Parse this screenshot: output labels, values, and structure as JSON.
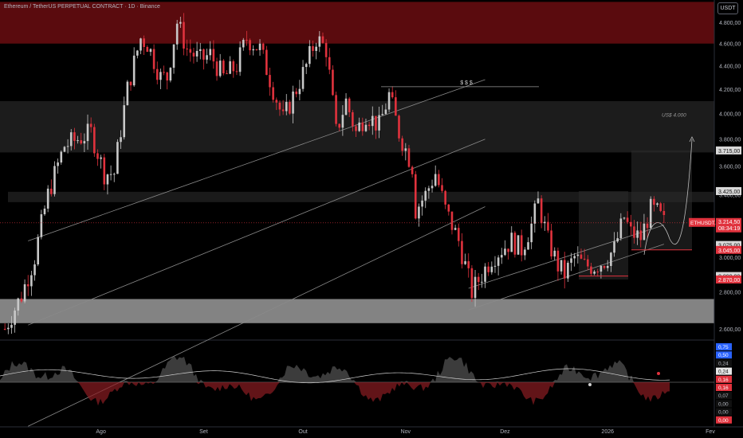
{
  "header": {
    "title": "Ethereum / TetherUS PERPETUAL CONTRACT · 1D · Binance",
    "currency_label": "USDT"
  },
  "colors": {
    "up": "#c8c8c8",
    "down": "#e0323d",
    "background": "#000000",
    "resistance_zone": "#5a0b0e",
    "support_zone": "#9a9a9a",
    "price_tag": "#e0323d",
    "neutral_tag": "#d8d8d8",
    "blue_tag": "#2962ff"
  },
  "chart_data": [
    {
      "type": "candlestick",
      "title": "Ethereum / TetherUS PERPETUAL CONTRACT · 1D · Binance",
      "symbol": "ETHUSDT.P",
      "y_axis": {
        "scale": "log",
        "ticks": [
          2600,
          2800,
          3000,
          3200,
          3400,
          3600,
          3800,
          4000,
          4200,
          4400,
          4600,
          4800
        ],
        "tick_labels": [
          "2.600,00",
          "2.800,00",
          "3.000,00",
          "3.200,00",
          "3.400,00",
          "3.600,00",
          "3.800,00",
          "4.000,00",
          "4.200,00",
          "4.400,00",
          "4.600,00",
          "4.800,00"
        ]
      },
      "x_axis": {
        "labels": [
          {
            "date": "2025-08-01",
            "text": "Ago"
          },
          {
            "date": "2025-09-01",
            "text": "Set"
          },
          {
            "date": "2025-10-01",
            "text": "Out"
          },
          {
            "date": "2025-11-01",
            "text": "Nov"
          },
          {
            "date": "2025-12-01",
            "text": "Dez"
          },
          {
            "date": "2026-01-01",
            "text": "2026"
          },
          {
            "date": "2026-02-01",
            "text": "Fev"
          }
        ]
      },
      "price_path": [
        [
          "2025-07-03",
          2600
        ],
        [
          "2025-07-08",
          2780
        ],
        [
          "2025-07-12",
          3000
        ],
        [
          "2025-07-16",
          3400
        ],
        [
          "2025-07-21",
          3750
        ],
        [
          "2025-07-25",
          3800
        ],
        [
          "2025-07-29",
          3850
        ],
        [
          "2025-08-02",
          3550
        ],
        [
          "2025-08-05",
          3550
        ],
        [
          "2025-08-09",
          4200
        ],
        [
          "2025-08-13",
          4650
        ],
        [
          "2025-08-15",
          4600
        ],
        [
          "2025-08-19",
          4300
        ],
        [
          "2025-08-21",
          4300
        ],
        [
          "2025-08-24",
          4800
        ],
        [
          "2025-08-27",
          4550
        ],
        [
          "2025-08-31",
          4450
        ],
        [
          "2025-09-03",
          4500
        ],
        [
          "2025-09-07",
          4300
        ],
        [
          "2025-09-11",
          4400
        ],
        [
          "2025-09-14",
          4650
        ],
        [
          "2025-09-18",
          4550
        ],
        [
          "2025-09-22",
          4200
        ],
        [
          "2025-09-25",
          3950
        ],
        [
          "2025-09-29",
          4200
        ],
        [
          "2025-10-02",
          4400
        ],
        [
          "2025-10-05",
          4650
        ],
        [
          "2025-10-08",
          4550
        ],
        [
          "2025-10-11",
          3850
        ],
        [
          "2025-10-14",
          4100
        ],
        [
          "2025-10-17",
          3850
        ],
        [
          "2025-10-20",
          4000
        ],
        [
          "2025-10-24",
          3900
        ],
        [
          "2025-10-27",
          4150
        ],
        [
          "2025-10-30",
          3850
        ],
        [
          "2025-11-03",
          3600
        ],
        [
          "2025-11-04",
          3300
        ],
        [
          "2025-11-07",
          3400
        ],
        [
          "2025-11-10",
          3550
        ],
        [
          "2025-11-13",
          3300
        ],
        [
          "2025-11-17",
          3100
        ],
        [
          "2025-11-21",
          2800
        ],
        [
          "2025-11-24",
          2900
        ],
        [
          "2025-11-27",
          3000
        ],
        [
          "2025-11-30",
          3050
        ],
        [
          "2025-12-03",
          3100
        ],
        [
          "2025-12-06",
          3050
        ],
        [
          "2025-12-09",
          3200
        ],
        [
          "2025-12-11",
          3350
        ],
        [
          "2025-12-14",
          3100
        ],
        [
          "2025-12-17",
          2950
        ],
        [
          "2025-12-19",
          2900
        ],
        [
          "2025-12-22",
          3000
        ],
        [
          "2025-12-25",
          2950
        ],
        [
          "2025-12-28",
          2950
        ],
        [
          "2025-12-31",
          2980
        ],
        [
          "2026-01-03",
          3050
        ],
        [
          "2026-01-06",
          3250
        ],
        [
          "2026-01-08",
          3150
        ],
        [
          "2026-01-11",
          3120
        ],
        [
          "2026-01-14",
          3300
        ],
        [
          "2026-01-16",
          3280
        ],
        [
          "2026-01-18",
          3215
        ]
      ],
      "current_price": {
        "value": 3214.5,
        "label": "ETHUSDT.P",
        "price_text": "3.214,50",
        "countdown": "08:34:19"
      },
      "price_tags": [
        {
          "value": 3715,
          "text": "3.715,00",
          "style": "neutral"
        },
        {
          "value": 3425,
          "text": "3.425,00",
          "style": "neutral"
        },
        {
          "value": 3075,
          "text": "3.075,00",
          "style": "neutral"
        },
        {
          "value": 3045,
          "text": "3.045,00",
          "style": "red"
        },
        {
          "value": 2890,
          "text": "2.890,00",
          "style": "neutral"
        },
        {
          "value": 2870,
          "text": "2.870,00",
          "style": "red"
        }
      ],
      "zones": [
        {
          "name": "resistance",
          "from": 4600,
          "to": 5000
        },
        {
          "name": "upper-gray",
          "from": 3700,
          "to": 4100
        },
        {
          "name": "mid-gray",
          "from": 3350,
          "to": 3420
        },
        {
          "name": "support",
          "from": 2630,
          "to": 2760
        }
      ],
      "annotations": [
        {
          "text": "$ $ $",
          "kind": "target-line",
          "value": 4220
        },
        {
          "text": "US$ 4.000",
          "kind": "projection",
          "value": 4000
        }
      ],
      "channels": [
        {
          "name": "big-channel",
          "start": [
            "2025-07-10",
            2620
          ],
          "end": [
            "2025-11-25",
            3800
          ],
          "offset_top": 480,
          "offset_bottom": -480
        },
        {
          "name": "small-channel",
          "start": [
            "2025-11-20",
            2700
          ],
          "end": [
            "2026-01-18",
            3080
          ],
          "offset_top": 120
        }
      ]
    },
    {
      "type": "area",
      "title": "",
      "panel": "oscillator",
      "y_tags": [
        {
          "text": "0,75",
          "style": "blue"
        },
        {
          "text": "0,50",
          "style": "blue"
        },
        {
          "text": "0,24",
          "style": "dark"
        },
        {
          "text": "0,24",
          "style": "white"
        },
        {
          "text": "0,16",
          "style": "red"
        },
        {
          "text": "0,16",
          "style": "red"
        },
        {
          "text": "0,07",
          "style": "dark"
        },
        {
          "text": "0,00",
          "style": "dark"
        },
        {
          "text": "0,00",
          "style": "dark"
        },
        {
          "text": "0,00",
          "style": "red"
        }
      ]
    }
  ]
}
